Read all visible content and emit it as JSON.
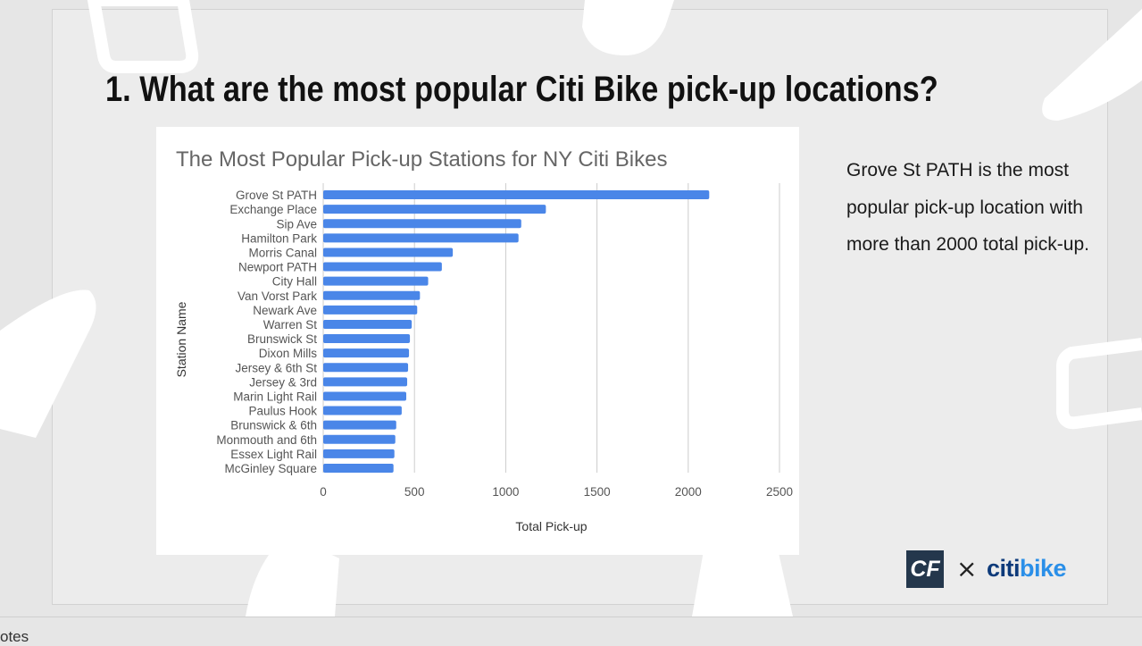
{
  "slide": {
    "title": "1.  What are the most popular Citi Bike pick-up locations?",
    "note": "Grove St PATH is the most popular pick-up location with more than 2000 total pick-up."
  },
  "logos": {
    "cf": "CF",
    "times": "×",
    "citi_part1": "citi",
    "citi_part2": "bike"
  },
  "notes_pane": {
    "label": "otes"
  },
  "colors": {
    "bar": "#4a86e8",
    "grid": "#cccccc",
    "title": "#666666",
    "axis_text": "#555555"
  },
  "chart_data": {
    "type": "bar",
    "orientation": "horizontal",
    "title": "The Most Popular Pick-up Stations for NY Citi Bikes",
    "xlabel": "Total Pick-up",
    "ylabel": "Station Name",
    "xlim": [
      0,
      2500
    ],
    "xticks": [
      0,
      500,
      1000,
      1500,
      2000,
      2500
    ],
    "grid": true,
    "categories": [
      "Grove St PATH",
      "Exchange Place",
      "Sip Ave",
      "Hamilton Park",
      "Morris Canal",
      "Newport PATH",
      "City Hall",
      "Van Vorst Park",
      "Newark Ave",
      "Warren St",
      "Brunswick St",
      "Dixon Mills",
      "Jersey & 6th St",
      "Jersey & 3rd",
      "Marin Light Rail",
      "Paulus Hook",
      "Brunswick & 6th",
      "Monmouth and 6th",
      "Essex Light Rail",
      "McGinley Square"
    ],
    "values": [
      2115,
      1220,
      1085,
      1070,
      710,
      650,
      575,
      530,
      515,
      485,
      475,
      470,
      465,
      460,
      455,
      430,
      400,
      395,
      390,
      385
    ]
  }
}
